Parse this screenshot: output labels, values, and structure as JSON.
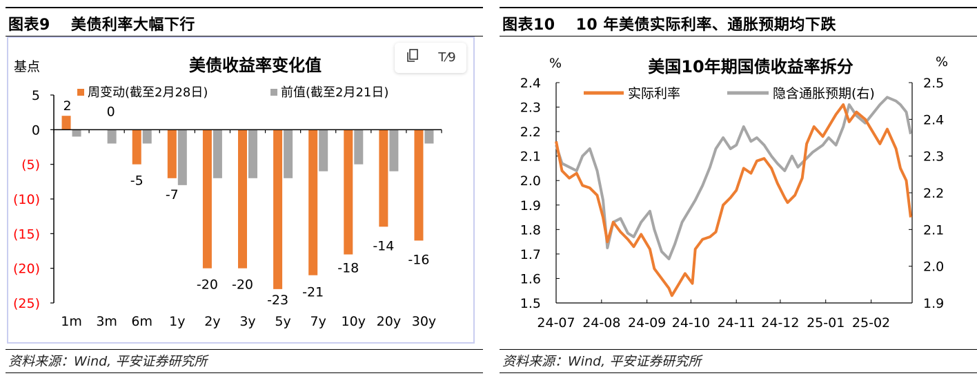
{
  "left": {
    "figure_label": "图表9",
    "figure_title": "美债利率大幅下行",
    "source": "资料来源：Wind, 平安证券研究所",
    "toolbar": {
      "copy_icon": "copy-icon",
      "text_icon": "text-format-icon",
      "text_icon_glyph": "T⁄9"
    },
    "chart_data": {
      "type": "bar",
      "title": "美债收益率变化值",
      "ylabel": "基点",
      "ylim": [
        -25,
        5
      ],
      "yticks": [
        5,
        0,
        -5,
        -10,
        -15,
        -20,
        -25
      ],
      "ytick_labels": [
        "5",
        "0",
        "(5)",
        "(10)",
        "(15)",
        "(20)",
        "(25)"
      ],
      "negative_tick_color": "#ff0000",
      "categories": [
        "1m",
        "3m",
        "6m",
        "1y",
        "2y",
        "3y",
        "5y",
        "7y",
        "10y",
        "20y",
        "30y"
      ],
      "series": [
        {
          "name": "周变动(截至2月28日)",
          "color": "#ed7d31",
          "values": [
            2,
            0,
            -5,
            -7,
            -20,
            -20,
            -23,
            -21,
            -18,
            -14,
            -16
          ],
          "labels": [
            "2",
            "0",
            "-5",
            "-7",
            "-20",
            "-20",
            "-23",
            "-21",
            "-18",
            "-14",
            "-16"
          ]
        },
        {
          "name": "前值(截至2月21日)",
          "color": "#a6a6a6",
          "values": [
            -1,
            -2,
            -2,
            -8,
            -7,
            -7,
            -7,
            -6,
            -5,
            -6,
            -2
          ]
        }
      ],
      "legend_position": "top"
    }
  },
  "right": {
    "figure_label": "图表10",
    "figure_title": "10 年美债实际利率、通胀预期均下跌",
    "source": "资料来源：Wind, 平安证券研究所",
    "chart_data": {
      "type": "line",
      "title": "美国10年期国债收益率拆分",
      "ylabel_left": "%",
      "ylabel_right": "%",
      "ylim_left": [
        1.5,
        2.4
      ],
      "yticks_left": [
        "2.4",
        "2.3",
        "2.2",
        "2.1",
        "2.0",
        "1.9",
        "1.8",
        "1.7",
        "1.6",
        "1.5"
      ],
      "ylim_right": [
        1.9,
        2.5
      ],
      "yticks_right": [
        "2.5",
        "2.4",
        "2.3",
        "2.2",
        "2.1",
        "2.0",
        "1.9"
      ],
      "xlim": [
        "2024-07-01",
        "2025-03-01"
      ],
      "x_ticks": [
        "24-07",
        "24-08",
        "24-09",
        "24-10",
        "24-11",
        "24-12",
        "25-01",
        "25-02"
      ],
      "legend_position": "top",
      "series": [
        {
          "name": "实际利率",
          "axis": "left",
          "color": "#ed7d31",
          "points": [
            [
              "2024-07-01",
              2.16
            ],
            [
              "2024-07-05",
              2.04
            ],
            [
              "2024-07-10",
              2.01
            ],
            [
              "2024-07-15",
              2.03
            ],
            [
              "2024-07-19",
              1.98
            ],
            [
              "2024-07-24",
              1.97
            ],
            [
              "2024-07-29",
              1.94
            ],
            [
              "2024-08-02",
              1.85
            ],
            [
              "2024-08-05",
              1.75
            ],
            [
              "2024-08-09",
              1.83
            ],
            [
              "2024-08-14",
              1.79
            ],
            [
              "2024-08-19",
              1.76
            ],
            [
              "2024-08-23",
              1.73
            ],
            [
              "2024-08-28",
              1.78
            ],
            [
              "2024-09-03",
              1.72
            ],
            [
              "2024-09-06",
              1.64
            ],
            [
              "2024-09-11",
              1.6
            ],
            [
              "2024-09-16",
              1.56
            ],
            [
              "2024-09-18",
              1.53
            ],
            [
              "2024-09-23",
              1.58
            ],
            [
              "2024-09-27",
              1.62
            ],
            [
              "2024-10-02",
              1.58
            ],
            [
              "2024-10-04",
              1.72
            ],
            [
              "2024-10-09",
              1.76
            ],
            [
              "2024-10-14",
              1.77
            ],
            [
              "2024-10-18",
              1.79
            ],
            [
              "2024-10-23",
              1.9
            ],
            [
              "2024-10-28",
              1.93
            ],
            [
              "2024-11-01",
              1.96
            ],
            [
              "2024-11-06",
              2.05
            ],
            [
              "2024-11-11",
              2.03
            ],
            [
              "2024-11-15",
              2.08
            ],
            [
              "2024-11-20",
              2.09
            ],
            [
              "2024-11-25",
              2.05
            ],
            [
              "2024-11-29",
              1.99
            ],
            [
              "2024-12-04",
              1.93
            ],
            [
              "2024-12-06",
              1.91
            ],
            [
              "2024-12-11",
              1.94
            ],
            [
              "2024-12-16",
              2.01
            ],
            [
              "2024-12-19",
              2.15
            ],
            [
              "2024-12-24",
              2.22
            ],
            [
              "2024-12-30",
              2.18
            ],
            [
              "2025-01-03",
              2.22
            ],
            [
              "2025-01-08",
              2.27
            ],
            [
              "2025-01-13",
              2.31
            ],
            [
              "2025-01-17",
              2.24
            ],
            [
              "2025-01-22",
              2.28
            ],
            [
              "2025-01-28",
              2.25
            ],
            [
              "2025-02-03",
              2.19
            ],
            [
              "2025-02-07",
              2.15
            ],
            [
              "2025-02-12",
              2.21
            ],
            [
              "2025-02-18",
              2.13
            ],
            [
              "2025-02-21",
              2.05
            ],
            [
              "2025-02-25",
              2.0
            ],
            [
              "2025-02-28",
              1.85
            ]
          ]
        },
        {
          "name": "隐含通胀预期(右)",
          "axis": "right",
          "color": "#a6a6a6",
          "points": [
            [
              "2024-07-01",
              2.33
            ],
            [
              "2024-07-05",
              2.28
            ],
            [
              "2024-07-10",
              2.27
            ],
            [
              "2024-07-15",
              2.26
            ],
            [
              "2024-07-19",
              2.3
            ],
            [
              "2024-07-24",
              2.32
            ],
            [
              "2024-07-29",
              2.26
            ],
            [
              "2024-08-02",
              2.18
            ],
            [
              "2024-08-05",
              2.05
            ],
            [
              "2024-08-09",
              2.12
            ],
            [
              "2024-08-14",
              2.13
            ],
            [
              "2024-08-19",
              2.09
            ],
            [
              "2024-08-23",
              2.08
            ],
            [
              "2024-08-28",
              2.12
            ],
            [
              "2024-09-03",
              2.15
            ],
            [
              "2024-09-06",
              2.1
            ],
            [
              "2024-09-11",
              2.04
            ],
            [
              "2024-09-16",
              2.02
            ],
            [
              "2024-09-20",
              2.06
            ],
            [
              "2024-09-25",
              2.12
            ],
            [
              "2024-10-01",
              2.16
            ],
            [
              "2024-10-04",
              2.18
            ],
            [
              "2024-10-09",
              2.22
            ],
            [
              "2024-10-14",
              2.27
            ],
            [
              "2024-10-18",
              2.32
            ],
            [
              "2024-10-23",
              2.35
            ],
            [
              "2024-10-28",
              2.32
            ],
            [
              "2024-11-01",
              2.33
            ],
            [
              "2024-11-06",
              2.38
            ],
            [
              "2024-11-11",
              2.34
            ],
            [
              "2024-11-15",
              2.35
            ],
            [
              "2024-11-20",
              2.33
            ],
            [
              "2024-11-25",
              2.3
            ],
            [
              "2024-11-29",
              2.28
            ],
            [
              "2024-12-04",
              2.26
            ],
            [
              "2024-12-09",
              2.3
            ],
            [
              "2024-12-13",
              2.27
            ],
            [
              "2024-12-18",
              2.29
            ],
            [
              "2024-12-23",
              2.31
            ],
            [
              "2024-12-30",
              2.33
            ],
            [
              "2025-01-03",
              2.35
            ],
            [
              "2025-01-08",
              2.33
            ],
            [
              "2025-01-13",
              2.38
            ],
            [
              "2025-01-17",
              2.44
            ],
            [
              "2025-01-22",
              2.41
            ],
            [
              "2025-01-28",
              2.39
            ],
            [
              "2025-02-03",
              2.42
            ],
            [
              "2025-02-07",
              2.44
            ],
            [
              "2025-02-12",
              2.46
            ],
            [
              "2025-02-18",
              2.45
            ],
            [
              "2025-02-21",
              2.44
            ],
            [
              "2025-02-25",
              2.42
            ],
            [
              "2025-02-28",
              2.36
            ]
          ]
        }
      ]
    }
  }
}
